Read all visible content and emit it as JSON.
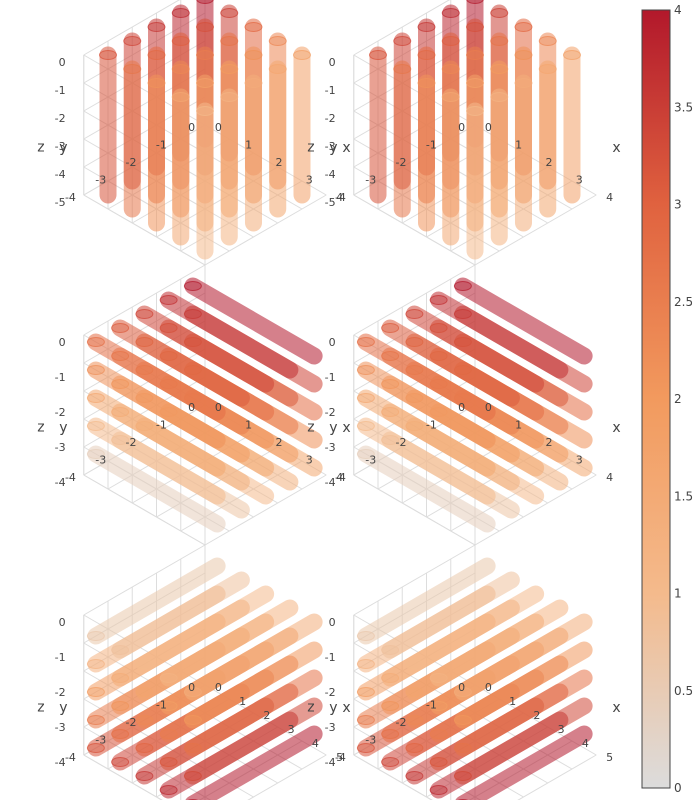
{
  "colors": {
    "scale": [
      "#dcdcdc",
      "#f4ba8c",
      "#f29a5e",
      "#e0623f",
      "#b2182b"
    ],
    "grid": "#dddddd",
    "axis": "#555555",
    "cbar_border": "#444444"
  },
  "colorbar": {
    "ticks": [
      "0",
      "0.5",
      "1",
      "1.5",
      "2",
      "2.5",
      "3",
      "3.5",
      "4"
    ],
    "range": [
      0,
      4
    ]
  },
  "chart_data": [
    {
      "type": "streamtube-3d",
      "orientation": "vertical",
      "x_ticks": [
        "0",
        "1",
        "2",
        "3",
        "4"
      ],
      "y_ticks": [
        "-4",
        "-3",
        "-2",
        "-1",
        "0"
      ],
      "z_ticks": [
        "0",
        "-1",
        "-2",
        "-3",
        "-4",
        "-5"
      ],
      "xlabel": "x",
      "ylabel": "y",
      "zlabel": "z"
    },
    {
      "type": "streamtube-3d",
      "orientation": "vertical",
      "x_ticks": [
        "0",
        "1",
        "2",
        "3",
        "4"
      ],
      "y_ticks": [
        "-4",
        "-3",
        "-2",
        "-1",
        "0"
      ],
      "z_ticks": [
        "0",
        "-1",
        "-2",
        "-3",
        "-4",
        "-5"
      ],
      "xlabel": "x",
      "ylabel": "y",
      "zlabel": "z"
    },
    {
      "type": "streamtube-3d",
      "orientation": "x-direction",
      "x_ticks": [
        "0",
        "1",
        "2",
        "3",
        "4"
      ],
      "y_ticks": [
        "-4",
        "-3",
        "-2",
        "-1",
        "0"
      ],
      "z_ticks": [
        "0",
        "-1",
        "-2",
        "-3",
        "-4"
      ],
      "xlabel": "x",
      "ylabel": "y",
      "zlabel": "z"
    },
    {
      "type": "streamtube-3d",
      "orientation": "x-direction",
      "x_ticks": [
        "0",
        "1",
        "2",
        "3",
        "4"
      ],
      "y_ticks": [
        "-4",
        "-3",
        "-2",
        "-1",
        "0"
      ],
      "z_ticks": [
        "0",
        "-1",
        "-2",
        "-3",
        "-4"
      ],
      "xlabel": "x",
      "ylabel": "y",
      "zlabel": "z"
    },
    {
      "type": "streamtube-3d",
      "orientation": "y-direction",
      "x_ticks": [
        "0",
        "1",
        "2",
        "3",
        "4",
        "5"
      ],
      "y_ticks": [
        "-4",
        "-3",
        "-2",
        "-1",
        "0"
      ],
      "z_ticks": [
        "0",
        "-1",
        "-2",
        "-3",
        "-4"
      ],
      "xlabel": "x",
      "ylabel": "y",
      "zlabel": "z"
    },
    {
      "type": "streamtube-3d",
      "orientation": "y-direction",
      "x_ticks": [
        "0",
        "1",
        "2",
        "3",
        "4",
        "5"
      ],
      "y_ticks": [
        "-4",
        "-3",
        "-2",
        "-1",
        "0"
      ],
      "z_ticks": [
        "0",
        "-1",
        "-2",
        "-3",
        "-4"
      ],
      "xlabel": "x",
      "ylabel": "y",
      "zlabel": "z"
    }
  ]
}
